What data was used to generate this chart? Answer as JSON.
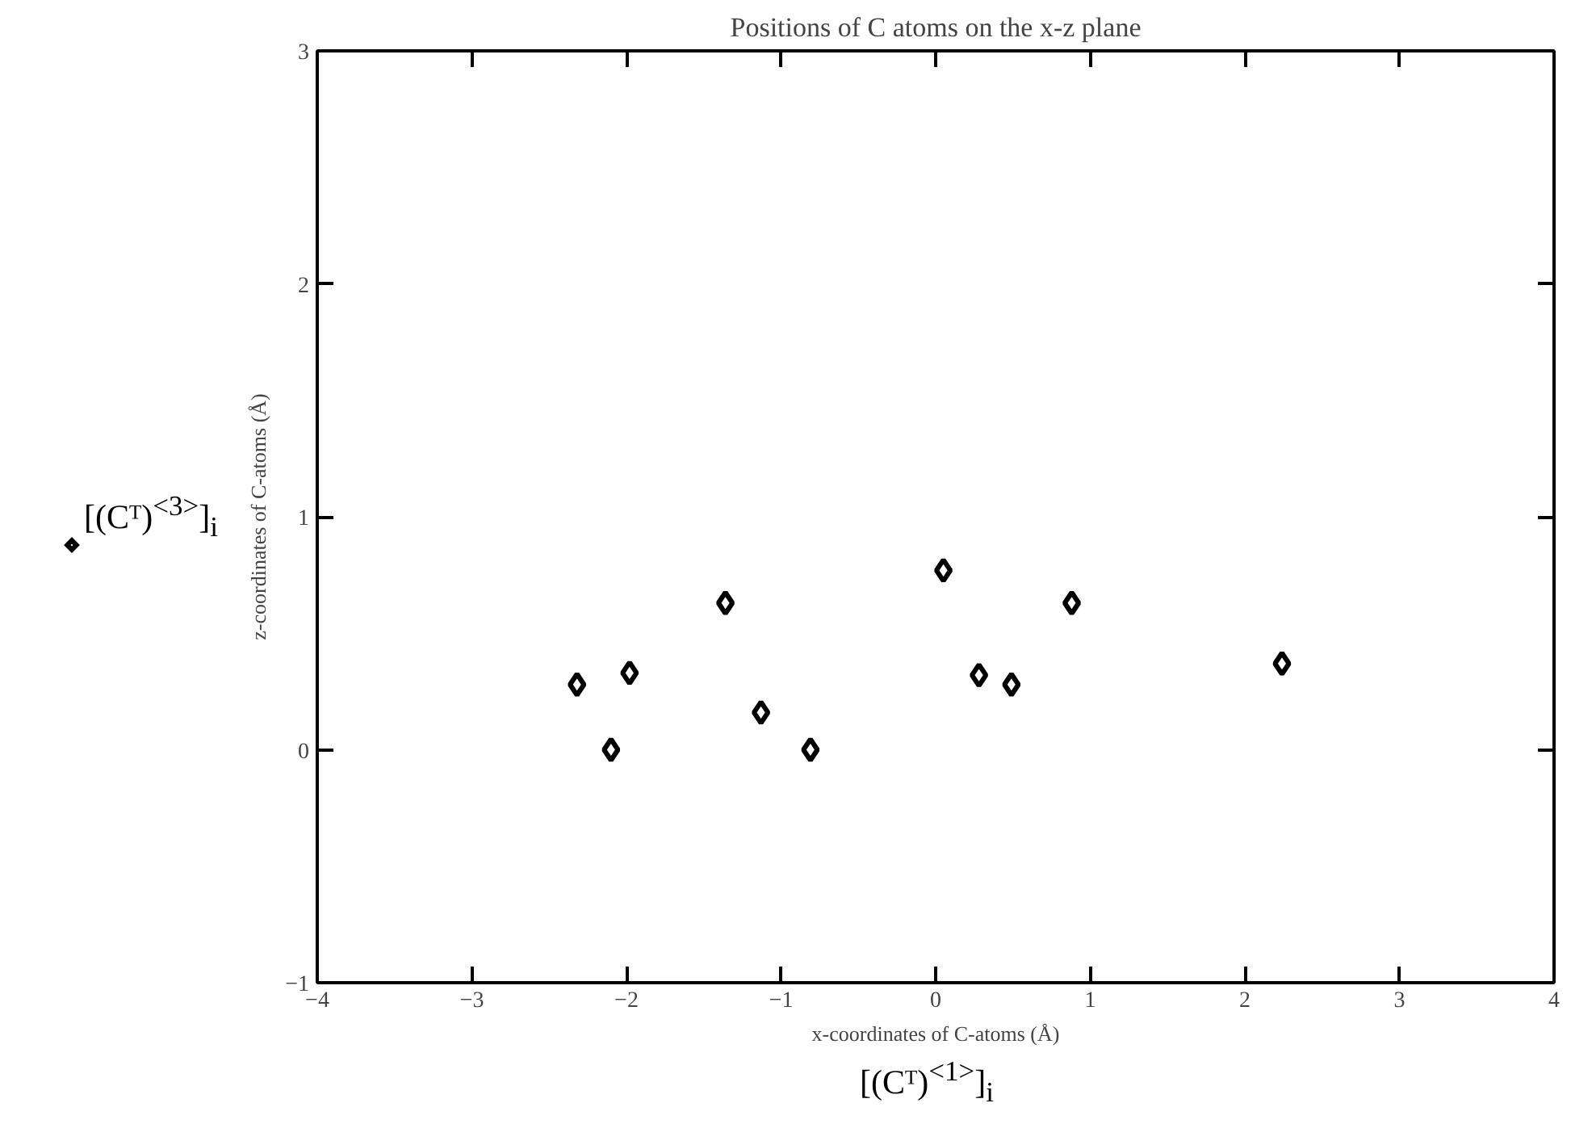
{
  "chart_data": {
    "type": "scatter",
    "title": "Positions of C atoms on the x-z plane",
    "xlabel": "x-coordinates of C-atoms (Å)",
    "ylabel": "z-coordinates of C-atoms (Å)",
    "annotations": [
      "[(Cᵀ)$^{<1>}$]$_{i}$"
    ],
    "series": [
      {
        "name": "[(Cᵀ)$^{<3>}$]$_{i}$",
        "color": "#000000",
        "x": [
          -2.32,
          -2.1,
          -1.98,
          -1.36,
          -1.13,
          -0.81,
          0.05,
          0.28,
          0.49,
          0.88,
          2.24
        ],
        "values": [
          0.28,
          0.0,
          0.33,
          0.63,
          0.16,
          0.0,
          0.77,
          0.32,
          0.28,
          0.63,
          0.37
        ]
      }
    ],
    "xlim": [
      -4,
      4
    ],
    "ylim": [
      -1,
      3
    ],
    "xticks": [
      {
        "value": -4,
        "label": "−4"
      },
      {
        "value": -3,
        "label": "−3"
      },
      {
        "value": -2,
        "label": "−2"
      },
      {
        "value": -1,
        "label": "−1"
      },
      0,
      1,
      2,
      3,
      4
    ],
    "yticks": [
      {
        "value": -1,
        "label": "−1"
      },
      0,
      1,
      2,
      3
    ],
    "grid": false,
    "legend": "left",
    "marker": "diamond"
  }
}
